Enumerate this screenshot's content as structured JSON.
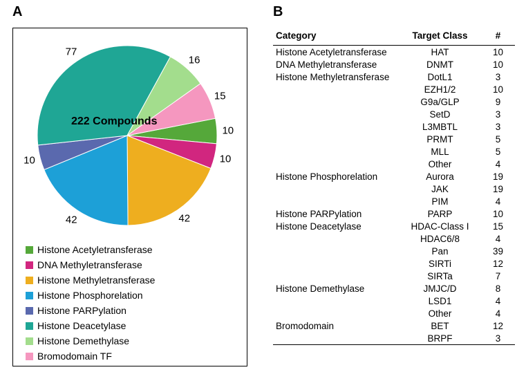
{
  "panelA": {
    "label": "A",
    "center_label": "222 Compounds",
    "center_label_color": "#000000",
    "center_label_fontsize": 16,
    "chart": {
      "type": "pie",
      "background_color": "#ffffff",
      "radius": 130,
      "start_angle_deg": 79,
      "direction": "clockwise",
      "slices": [
        {
          "name": "Histone Acetyletransferase",
          "value": 10,
          "color": "#55a83a",
          "label": "10",
          "label_color": "#000000"
        },
        {
          "name": "DNA Methyletransferase",
          "value": 10,
          "color": "#d1267f",
          "label": "10",
          "label_color": "#000000"
        },
        {
          "name": "Histone Methyletransferase",
          "value": 42,
          "color": "#eeae1f",
          "label": "42",
          "label_color": "#000000"
        },
        {
          "name": "Histone Phosphorelation",
          "value": 42,
          "color": "#1da0d7",
          "label": "42",
          "label_color": "#000000"
        },
        {
          "name": "Histone PARPylation",
          "value": 10,
          "color": "#5a69ae",
          "label": "10",
          "label_color": "#000000"
        },
        {
          "name": "Histone Deacetylase",
          "value": 77,
          "color": "#1fa695",
          "label": "77",
          "label_color": "#000000"
        },
        {
          "name": "Histone Demethylase",
          "value": 16,
          "color": "#a3dd8d",
          "label": "16",
          "label_color": "#000000"
        },
        {
          "name": "Bromodomain TF",
          "value": 15,
          "color": "#f597bf",
          "label": "15",
          "label_color": "#000000"
        }
      ]
    },
    "legend_fontsize": 14
  },
  "panelB": {
    "label": "B",
    "columns": [
      "Category",
      "Target Class",
      "#"
    ],
    "header_fontsize": 14,
    "body_fontsize": 13.5,
    "rows": [
      {
        "category": "Histone Acetyletransferase",
        "target": "HAT",
        "count": 10
      },
      {
        "category": "DNA Methyletransferase",
        "target": "DNMT",
        "count": 10
      },
      {
        "category": "Histone Methyletransferase",
        "target": "DotL1",
        "count": 3
      },
      {
        "category": "",
        "target": "EZH1/2",
        "count": 10
      },
      {
        "category": "",
        "target": "G9a/GLP",
        "count": 9
      },
      {
        "category": "",
        "target": "SetD",
        "count": 3
      },
      {
        "category": "",
        "target": "L3MBTL",
        "count": 3
      },
      {
        "category": "",
        "target": "PRMT",
        "count": 5
      },
      {
        "category": "",
        "target": "MLL",
        "count": 5
      },
      {
        "category": "",
        "target": "Other",
        "count": 4
      },
      {
        "category": "Histone Phosphorelation",
        "target": "Aurora",
        "count": 19
      },
      {
        "category": "",
        "target": "JAK",
        "count": 19
      },
      {
        "category": "",
        "target": "PIM",
        "count": 4
      },
      {
        "category": "Histone PARPylation",
        "target": "PARP",
        "count": 10
      },
      {
        "category": "Histone Deacetylase",
        "target": "HDAC-Class I",
        "count": 15
      },
      {
        "category": "",
        "target": "HDAC6/8",
        "count": 4
      },
      {
        "category": "",
        "target": "Pan",
        "count": 39
      },
      {
        "category": "",
        "target": "SIRTi",
        "count": 12
      },
      {
        "category": "",
        "target": "SIRTa",
        "count": 7
      },
      {
        "category": "Histone Demethylase",
        "target": "JMJC/D",
        "count": 8
      },
      {
        "category": "",
        "target": "LSD1",
        "count": 4
      },
      {
        "category": "",
        "target": "Other",
        "count": 4
      },
      {
        "category": "Bromodomain",
        "target": "BET",
        "count": 12
      },
      {
        "category": "",
        "target": "BRPF",
        "count": 3
      }
    ]
  }
}
